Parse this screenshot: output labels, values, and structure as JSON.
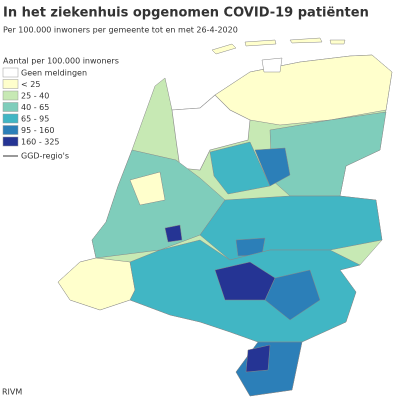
{
  "header": {
    "title": "In het ziekenhuis opgenomen COVID-19 patiënten",
    "subtitle": "Per 100.000 inwoners per gemeente tot en met 26-4-2020"
  },
  "legend": {
    "title": "Aantal per 100.000 inwoners",
    "items": [
      {
        "label": "Geen meldingen",
        "color": "#ffffff"
      },
      {
        "label": "< 25",
        "color": "#ffffcc"
      },
      {
        "label": "25 - 40",
        "color": "#c7e9b4"
      },
      {
        "label": "40 - 65",
        "color": "#7fcdbb"
      },
      {
        "label": "65 - 95",
        "color": "#41b6c4"
      },
      {
        "label": "95 - 160",
        "color": "#2c7fb8"
      },
      {
        "label": "160 - 325",
        "color": "#253494"
      }
    ],
    "region_line": "GGD-regio's"
  },
  "source": "RIVM"
}
